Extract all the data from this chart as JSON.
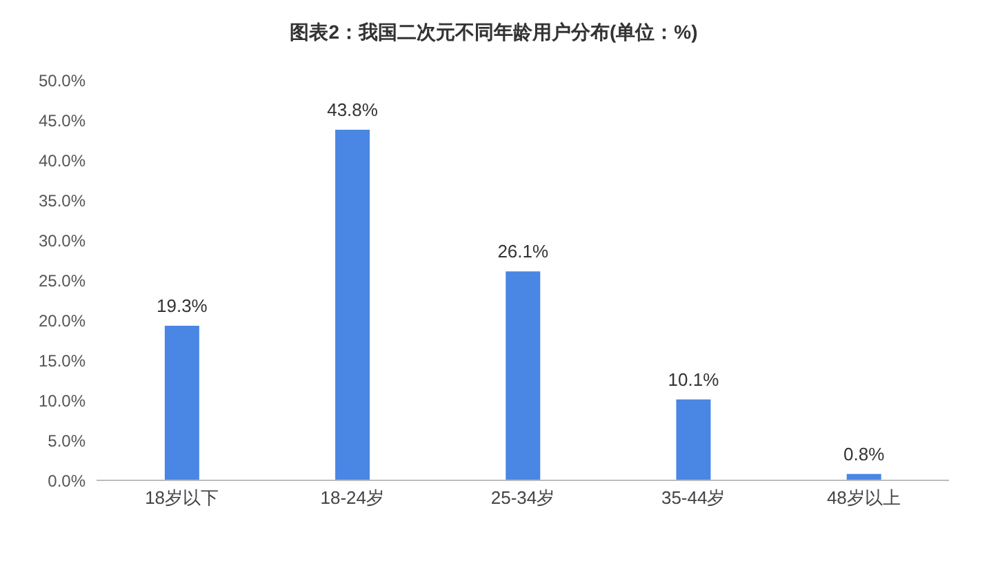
{
  "chart_data": {
    "type": "bar",
    "title": "图表2：我国二次元不同年龄用户分布(单位：%)",
    "categories": [
      "18岁以下",
      "18-24岁",
      "25-34岁",
      "35-44岁",
      "48岁以上"
    ],
    "values": [
      19.3,
      43.8,
      26.1,
      10.1,
      0.8
    ],
    "value_labels": [
      "19.3%",
      "43.8%",
      "26.1%",
      "10.1%",
      "0.8%"
    ],
    "color": "#4a86e3",
    "ylim": [
      0,
      50
    ],
    "yticks": [
      {
        "value": 0,
        "label": "0.0%"
      },
      {
        "value": 5,
        "label": "5.0%"
      },
      {
        "value": 10,
        "label": "10.0%"
      },
      {
        "value": 15,
        "label": "15.0%"
      },
      {
        "value": 20,
        "label": "20.0%"
      },
      {
        "value": 25,
        "label": "25.0%"
      },
      {
        "value": 30,
        "label": "30.0%"
      },
      {
        "value": 35,
        "label": "35.0%"
      },
      {
        "value": 40,
        "label": "40.0%"
      },
      {
        "value": 45,
        "label": "45.0%"
      },
      {
        "value": 50,
        "label": "50.0%"
      }
    ],
    "grid": false,
    "legend": false
  }
}
